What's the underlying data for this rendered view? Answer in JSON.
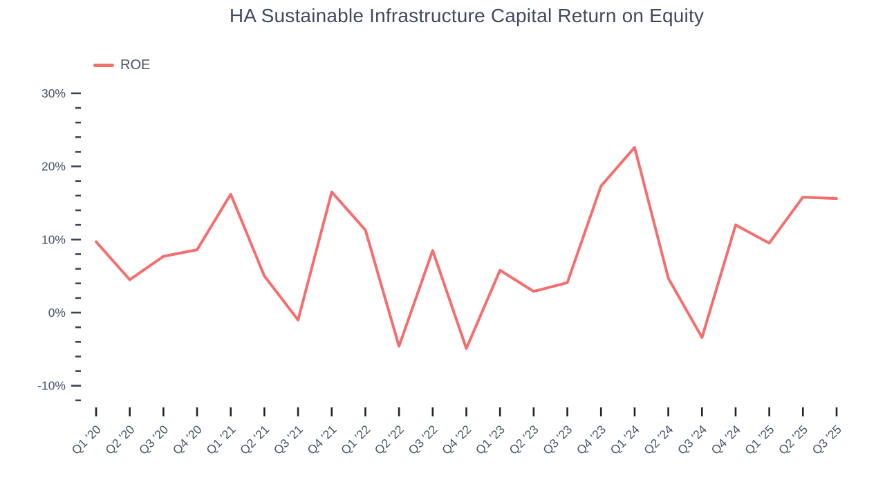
{
  "page": {
    "background": "#ffffff"
  },
  "colors": {
    "line": "#f56e6e",
    "title_text": "#3e4b5e",
    "axis_text": "#46536b",
    "y_tick": "#3a4455",
    "x_tick": "#222222"
  },
  "legend": {
    "items": [
      {
        "label": "ROE",
        "color": "#f56e6e"
      }
    ]
  },
  "chart_data": {
    "type": "line",
    "title": "HA Sustainable Infrastructure Capital Return on Equity",
    "xlabel": "",
    "ylabel": "",
    "grid": false,
    "legend_position": "top-left",
    "categories": [
      "Q1 '20",
      "Q2 '20",
      "Q3 '20",
      "Q4 '20",
      "Q1 '21",
      "Q2 '21",
      "Q3 '21",
      "Q4 '21",
      "Q1 '22",
      "Q2 '22",
      "Q3 '22",
      "Q4 '22",
      "Q1 '23",
      "Q2 '23",
      "Q3 '23",
      "Q4 '23",
      "Q1 '24",
      "Q2 '24",
      "Q3 '24",
      "Q4 '24",
      "Q1 '25",
      "Q2 '25",
      "Q3 '25"
    ],
    "series": [
      {
        "name": "ROE",
        "color": "#f56e6e",
        "values": [
          9.7,
          4.5,
          7.7,
          8.6,
          16.2,
          5.0,
          -1.0,
          16.5,
          11.3,
          -4.6,
          8.5,
          -4.9,
          5.8,
          2.9,
          4.1,
          17.3,
          22.6,
          4.7,
          -3.4,
          12.0,
          9.5,
          15.8,
          15.6
        ]
      }
    ],
    "y_axis": {
      "unit": "%",
      "ticks": [
        {
          "value": 30,
          "label": "30%"
        },
        {
          "value": 20,
          "label": "20%"
        },
        {
          "value": 10,
          "label": "10%"
        },
        {
          "value": 0,
          "label": "0%"
        },
        {
          "value": -10,
          "label": "-10%"
        }
      ],
      "minor_tick_step": 2,
      "ylim": [
        -12,
        30
      ]
    }
  }
}
